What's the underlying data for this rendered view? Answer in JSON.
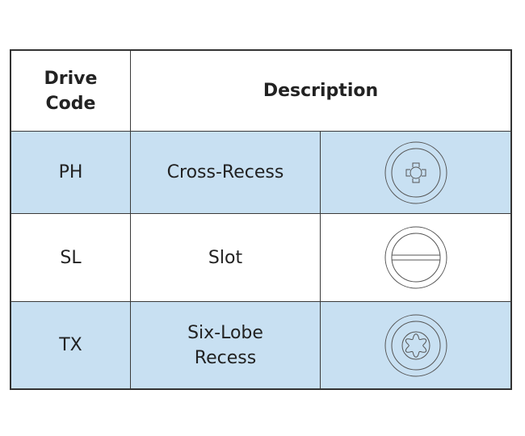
{
  "table": {
    "headers": [
      "Drive\nCode",
      "Description"
    ],
    "header_lines": {
      "code": [
        "Drive",
        "Code"
      ],
      "description": "Description"
    },
    "rows": [
      {
        "code": "PH",
        "description": [
          "Cross-Recess"
        ],
        "icon": "phillips-cross-recess-head-icon",
        "highlight": true
      },
      {
        "code": "SL",
        "description": [
          "Slot"
        ],
        "icon": "slotted-head-icon",
        "highlight": false
      },
      {
        "code": "TX",
        "description": [
          "Six-Lobe",
          "Recess"
        ],
        "icon": "torx-six-lobe-head-icon",
        "highlight": true
      }
    ]
  },
  "colors": {
    "row_highlight": "#c8e0f2",
    "border": "#333333"
  }
}
